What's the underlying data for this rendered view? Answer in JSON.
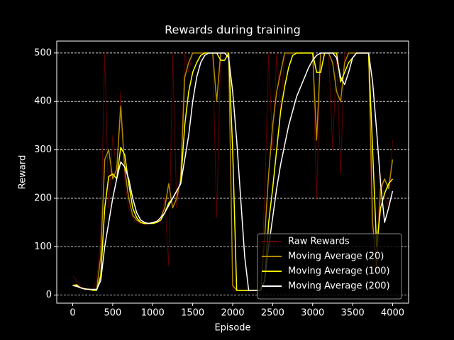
{
  "chart_data": {
    "type": "line",
    "title": "Rewards during training",
    "x_label": "Episode",
    "y_label": "Reward",
    "x": [
      0,
      50,
      100,
      150,
      200,
      250,
      300,
      350,
      400,
      450,
      500,
      550,
      600,
      650,
      700,
      750,
      800,
      850,
      900,
      950,
      1000,
      1050,
      1100,
      1150,
      1200,
      1250,
      1300,
      1350,
      1400,
      1450,
      1500,
      1550,
      1600,
      1650,
      1700,
      1750,
      1800,
      1850,
      1900,
      1950,
      2000,
      2050,
      2100,
      2150,
      2200,
      2250,
      2300,
      2350,
      2400,
      2450,
      2500,
      2550,
      2600,
      2650,
      2700,
      2750,
      2800,
      2850,
      2900,
      2950,
      3000,
      3050,
      3100,
      3150,
      3200,
      3250,
      3300,
      3350,
      3400,
      3450,
      3500,
      3550,
      3600,
      3650,
      3700,
      3750,
      3800,
      3850,
      3900,
      3950,
      4000
    ],
    "series": [
      {
        "name": "Raw Rewards",
        "color": "#5c0000",
        "values": [
          40,
          30,
          20,
          10,
          15,
          9,
          30,
          120,
          500,
          180,
          330,
          250,
          420,
          240,
          180,
          160,
          150,
          148,
          145,
          150,
          148,
          155,
          150,
          200,
          60,
          500,
          180,
          250,
          500,
          460,
          500,
          500,
          500,
          500,
          500,
          500,
          160,
          500,
          500,
          500,
          10,
          9,
          9,
          9,
          9,
          9,
          9,
          9,
          200,
          500,
          300,
          500,
          380,
          500,
          500,
          500,
          500,
          500,
          500,
          500,
          500,
          200,
          500,
          500,
          500,
          300,
          500,
          250,
          500,
          500,
          500,
          500,
          500,
          500,
          500,
          30,
          100,
          250,
          200,
          180,
          320
        ]
      },
      {
        "name": "Moving Average (20)",
        "color": "#b08a00",
        "values": [
          20,
          22,
          15,
          12,
          12,
          10,
          12,
          80,
          280,
          300,
          240,
          260,
          390,
          260,
          200,
          165,
          155,
          150,
          148,
          148,
          150,
          152,
          160,
          180,
          230,
          180,
          200,
          240,
          450,
          480,
          500,
          500,
          500,
          500,
          500,
          500,
          400,
          500,
          500,
          500,
          20,
          10,
          10,
          10,
          10,
          10,
          10,
          10,
          120,
          250,
          350,
          420,
          460,
          500,
          500,
          500,
          500,
          500,
          500,
          500,
          500,
          320,
          500,
          500,
          500,
          480,
          420,
          400,
          480,
          500,
          500,
          500,
          500,
          500,
          500,
          150,
          60,
          220,
          240,
          220,
          280
        ]
      },
      {
        "name": "Moving Average (100)",
        "color": "#ffff00",
        "values": [
          20,
          20,
          15,
          13,
          12,
          10,
          10,
          40,
          180,
          245,
          250,
          240,
          305,
          290,
          230,
          180,
          160,
          150,
          148,
          148,
          148,
          150,
          155,
          170,
          190,
          200,
          215,
          230,
          350,
          420,
          460,
          480,
          495,
          500,
          500,
          500,
          500,
          485,
          485,
          500,
          300,
          10,
          10,
          10,
          10,
          10,
          10,
          10,
          30,
          150,
          220,
          300,
          380,
          430,
          470,
          495,
          500,
          500,
          500,
          500,
          500,
          460,
          460,
          500,
          500,
          500,
          500,
          440,
          460,
          480,
          490,
          500,
          500,
          500,
          500,
          300,
          100,
          180,
          210,
          230,
          240
        ]
      },
      {
        "name": "Moving Average (200)",
        "color": "#ffffff",
        "values": [
          20,
          18,
          15,
          13,
          12,
          12,
          12,
          30,
          100,
          150,
          200,
          240,
          275,
          265,
          240,
          200,
          170,
          155,
          150,
          148,
          150,
          152,
          160,
          170,
          185,
          200,
          215,
          230,
          280,
          330,
          400,
          450,
          480,
          495,
          500,
          500,
          500,
          500,
          500,
          490,
          420,
          320,
          200,
          80,
          10,
          10,
          10,
          10,
          30,
          100,
          160,
          220,
          270,
          310,
          350,
          380,
          410,
          430,
          450,
          470,
          485,
          495,
          500,
          500,
          500,
          500,
          490,
          450,
          435,
          460,
          490,
          500,
          500,
          500,
          500,
          440,
          340,
          230,
          150,
          180,
          215
        ]
      }
    ],
    "xlim": [
      -200,
      4200
    ],
    "ylim": [
      -16.6,
      524.6
    ],
    "xticks": [
      0,
      500,
      1000,
      1500,
      2000,
      2500,
      3000,
      3500,
      4000
    ],
    "yticks": [
      0,
      100,
      200,
      300,
      400,
      500
    ],
    "grid": true,
    "legend": "lower right"
  }
}
